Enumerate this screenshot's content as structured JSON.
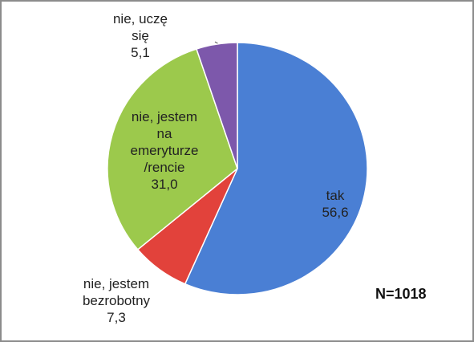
{
  "chart_data": {
    "type": "pie",
    "categories": [
      "tak",
      "nie, jestem\nbezrobotny",
      "nie, jestem\nna\nemeryturze\n/rencie",
      "nie, uczę\nsię"
    ],
    "values": [
      56.6,
      7.3,
      31.0,
      5.1
    ],
    "value_labels": [
      "56,6",
      "7,3",
      "31,0",
      "5,1"
    ],
    "colors": [
      "#4a7fd4",
      "#e2423b",
      "#9cc94c",
      "#7d58ab"
    ],
    "annotation": "N=1018"
  }
}
